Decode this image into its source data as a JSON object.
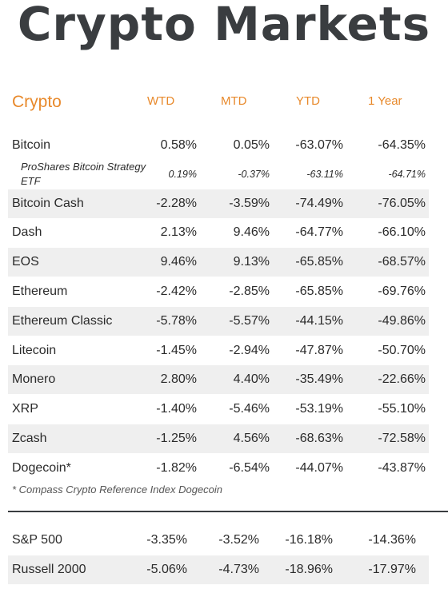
{
  "title": "Crypto Markets",
  "headers": {
    "section": "Crypto",
    "wtd": "WTD",
    "mtd": "MTD",
    "ytd": "YTD",
    "one_year": "1 Year"
  },
  "rows": [
    {
      "name": "Bitcoin",
      "wtd": "0.58%",
      "mtd": "0.05%",
      "ytd": "-63.07%",
      "one_year": "-64.35%"
    },
    {
      "name": "ProShares Bitcoin Strategy ETF",
      "wtd": "0.19%",
      "mtd": "-0.37%",
      "ytd": "-63.11%",
      "one_year": "-64.71%"
    },
    {
      "name": "Bitcoin Cash",
      "wtd": "-2.28%",
      "mtd": "-3.59%",
      "ytd": "-74.49%",
      "one_year": "-76.05%"
    },
    {
      "name": "Dash",
      "wtd": "2.13%",
      "mtd": "9.46%",
      "ytd": "-64.77%",
      "one_year": "-66.10%"
    },
    {
      "name": "EOS",
      "wtd": "9.46%",
      "mtd": "9.13%",
      "ytd": "-65.85%",
      "one_year": "-68.57%"
    },
    {
      "name": "Ethereum",
      "wtd": "-2.42%",
      "mtd": "-2.85%",
      "ytd": "-65.85%",
      "one_year": "-69.76%"
    },
    {
      "name": "Ethereum Classic",
      "wtd": "-5.78%",
      "mtd": "-5.57%",
      "ytd": "-44.15%",
      "one_year": "-49.86%"
    },
    {
      "name": "Litecoin",
      "wtd": "-1.45%",
      "mtd": "-2.94%",
      "ytd": "-47.87%",
      "one_year": "-50.70%"
    },
    {
      "name": "Monero",
      "wtd": "2.80%",
      "mtd": "4.40%",
      "ytd": "-35.49%",
      "one_year": "-22.66%"
    },
    {
      "name": "XRP",
      "wtd": "-1.40%",
      "mtd": "-5.46%",
      "ytd": "-53.19%",
      "one_year": "-55.10%"
    },
    {
      "name": "Zcash",
      "wtd": "-1.25%",
      "mtd": "4.56%",
      "ytd": "-68.63%",
      "one_year": "-72.58%"
    },
    {
      "name": "Dogecoin*",
      "wtd": "-1.82%",
      "mtd": "-6.54%",
      "ytd": "-44.07%",
      "one_year": "-43.87%"
    }
  ],
  "footnote": "* Compass Crypto Reference Index Dogecoin",
  "index_rows": [
    {
      "name": "S&P 500",
      "wtd": "-3.35%",
      "mtd": "-3.52%",
      "ytd": "-16.18%",
      "one_year": "-14.36%"
    },
    {
      "name": "Russell 2000",
      "wtd": "-5.06%",
      "mtd": "-4.73%",
      "ytd": "-18.96%",
      "one_year": "-17.97%"
    }
  ],
  "colors": {
    "accent": "#e8892b",
    "title": "#3a3d40",
    "row_shade": "#efefef"
  }
}
